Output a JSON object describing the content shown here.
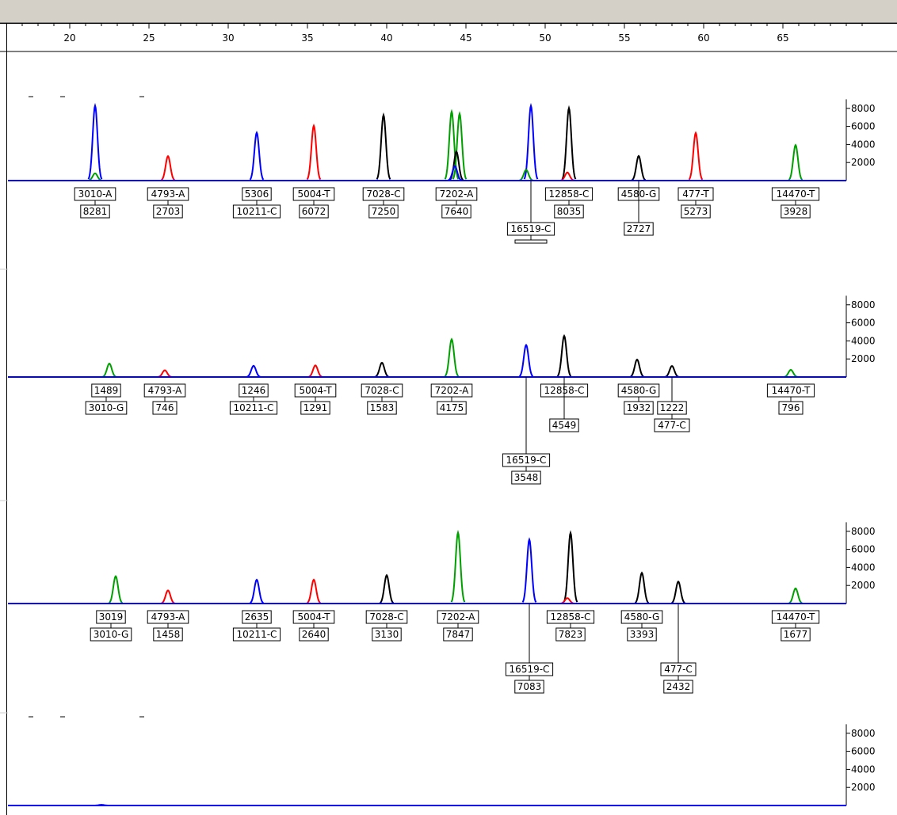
{
  "chart_data": {
    "type": "line",
    "x_axis": {
      "range": [
        16,
        70
      ],
      "major_ticks": [
        20,
        25,
        30,
        35,
        40,
        45,
        50,
        55,
        60,
        65
      ]
    },
    "y_axis": {
      "range": [
        0,
        9000
      ],
      "ticks": [
        2000,
        4000,
        6000,
        8000
      ]
    },
    "colors": {
      "blue": "#0000ff",
      "green": "#00a000",
      "red": "#ff0000",
      "black": "#000000"
    },
    "panels": [
      {
        "peaks": [
          {
            "x": 21.6,
            "height": 8281,
            "color": "blue"
          },
          {
            "x": 21.6,
            "height": 800,
            "color": "green"
          },
          {
            "x": 26.2,
            "height": 2703,
            "color": "red"
          },
          {
            "x": 31.8,
            "height": 5306,
            "color": "blue"
          },
          {
            "x": 35.4,
            "height": 6072,
            "color": "red"
          },
          {
            "x": 39.8,
            "height": 7250,
            "color": "black"
          },
          {
            "x": 44.1,
            "height": 7640,
            "color": "green"
          },
          {
            "x": 44.6,
            "height": 7400,
            "color": "green"
          },
          {
            "x": 44.4,
            "height": 3200,
            "color": "black"
          },
          {
            "x": 44.3,
            "height": 1600,
            "color": "blue"
          },
          {
            "x": 49.1,
            "height": 8281,
            "color": "blue"
          },
          {
            "x": 48.8,
            "height": 1200,
            "color": "green"
          },
          {
            "x": 51.5,
            "height": 8035,
            "color": "black"
          },
          {
            "x": 51.4,
            "height": 900,
            "color": "red"
          },
          {
            "x": 55.9,
            "height": 2727,
            "color": "black"
          },
          {
            "x": 59.5,
            "height": 5273,
            "color": "red"
          },
          {
            "x": 65.8,
            "height": 3928,
            "color": "green"
          }
        ],
        "labels": [
          {
            "x": 21.6,
            "row": 1,
            "lines": [
              "3010-A",
              "8281"
            ]
          },
          {
            "x": 26.2,
            "row": 1,
            "lines": [
              "4793-A",
              "2703"
            ]
          },
          {
            "x": 31.8,
            "row": 1,
            "lines": [
              "5306",
              "10211-C"
            ]
          },
          {
            "x": 35.4,
            "row": 1,
            "lines": [
              "5004-T",
              "6072"
            ]
          },
          {
            "x": 39.8,
            "row": 1,
            "lines": [
              "7028-C",
              "7250"
            ]
          },
          {
            "x": 44.4,
            "row": 1,
            "lines": [
              "7202-A",
              "7640"
            ]
          },
          {
            "x": 51.5,
            "row": 1,
            "lines": [
              "12858-C",
              "8035"
            ]
          },
          {
            "x": 55.9,
            "row": 1,
            "lines": [
              "4580-G"
            ]
          },
          {
            "x": 55.9,
            "row": 3,
            "lines": [
              "2727"
            ]
          },
          {
            "x": 59.5,
            "row": 1,
            "lines": [
              "477-T",
              "5273"
            ]
          },
          {
            "x": 65.8,
            "row": 1,
            "lines": [
              "14470-T",
              "3928"
            ]
          },
          {
            "x": 49.1,
            "row": 3,
            "lines": [
              "16519-C"
            ],
            "clipped": true
          }
        ]
      },
      {
        "peaks": [
          {
            "x": 22.5,
            "height": 1489,
            "color": "green"
          },
          {
            "x": 26.0,
            "height": 746,
            "color": "red"
          },
          {
            "x": 31.6,
            "height": 1246,
            "color": "blue"
          },
          {
            "x": 35.5,
            "height": 1291,
            "color": "red"
          },
          {
            "x": 39.7,
            "height": 1583,
            "color": "black"
          },
          {
            "x": 44.1,
            "height": 4175,
            "color": "green"
          },
          {
            "x": 48.8,
            "height": 3548,
            "color": "blue"
          },
          {
            "x": 51.2,
            "height": 4549,
            "color": "black"
          },
          {
            "x": 55.8,
            "height": 1932,
            "color": "black"
          },
          {
            "x": 58.0,
            "height": 1222,
            "color": "black"
          },
          {
            "x": 65.5,
            "height": 796,
            "color": "green"
          }
        ],
        "labels": [
          {
            "x": 22.3,
            "row": 1,
            "lines": [
              "1489",
              "3010-G"
            ]
          },
          {
            "x": 26.0,
            "row": 1,
            "lines": [
              "4793-A",
              "746"
            ]
          },
          {
            "x": 31.6,
            "row": 1,
            "lines": [
              "1246",
              "10211-C"
            ]
          },
          {
            "x": 35.5,
            "row": 1,
            "lines": [
              "5004-T",
              "1291"
            ]
          },
          {
            "x": 39.7,
            "row": 1,
            "lines": [
              "7028-C",
              "1583"
            ]
          },
          {
            "x": 44.1,
            "row": 1,
            "lines": [
              "7202-A",
              "4175"
            ]
          },
          {
            "x": 51.2,
            "row": 1,
            "lines": [
              "12858-C"
            ]
          },
          {
            "x": 51.2,
            "row": 3,
            "lines": [
              "4549"
            ]
          },
          {
            "x": 55.9,
            "row": 1,
            "lines": [
              "4580-G",
              "1932"
            ]
          },
          {
            "x": 58.0,
            "row": 2,
            "lines": [
              "1222",
              "477-C"
            ]
          },
          {
            "x": 48.8,
            "row": 5,
            "lines": [
              "16519-C",
              "3548"
            ]
          },
          {
            "x": 65.5,
            "row": 1,
            "lines": [
              "14470-T",
              "796"
            ]
          }
        ]
      },
      {
        "peaks": [
          {
            "x": 22.9,
            "height": 3019,
            "color": "green"
          },
          {
            "x": 26.2,
            "height": 1458,
            "color": "red"
          },
          {
            "x": 31.8,
            "height": 2635,
            "color": "blue"
          },
          {
            "x": 35.4,
            "height": 2640,
            "color": "red"
          },
          {
            "x": 40.0,
            "height": 3130,
            "color": "black"
          },
          {
            "x": 44.5,
            "height": 7847,
            "color": "green"
          },
          {
            "x": 49.0,
            "height": 7083,
            "color": "blue"
          },
          {
            "x": 51.6,
            "height": 7823,
            "color": "black"
          },
          {
            "x": 51.4,
            "height": 600,
            "color": "red"
          },
          {
            "x": 56.1,
            "height": 3393,
            "color": "black"
          },
          {
            "x": 58.4,
            "height": 2432,
            "color": "black"
          },
          {
            "x": 65.8,
            "height": 1677,
            "color": "green"
          }
        ],
        "labels": [
          {
            "x": 22.6,
            "row": 1,
            "lines": [
              "3019",
              "3010-G"
            ]
          },
          {
            "x": 26.2,
            "row": 1,
            "lines": [
              "4793-A",
              "1458"
            ]
          },
          {
            "x": 31.8,
            "row": 1,
            "lines": [
              "2635",
              "10211-C"
            ]
          },
          {
            "x": 35.4,
            "row": 1,
            "lines": [
              "5004-T",
              "2640"
            ]
          },
          {
            "x": 40.0,
            "row": 1,
            "lines": [
              "7028-C",
              "3130"
            ]
          },
          {
            "x": 44.5,
            "row": 1,
            "lines": [
              "7202-A",
              "7847"
            ]
          },
          {
            "x": 51.6,
            "row": 1,
            "lines": [
              "12858-C",
              "7823"
            ]
          },
          {
            "x": 56.1,
            "row": 1,
            "lines": [
              "4580-G",
              "3393"
            ]
          },
          {
            "x": 58.4,
            "row": 4,
            "lines": [
              "477-C",
              "2432"
            ]
          },
          {
            "x": 49.0,
            "row": 4,
            "lines": [
              "16519-C",
              "7083"
            ]
          },
          {
            "x": 65.8,
            "row": 1,
            "lines": [
              "14470-T",
              "1677"
            ]
          }
        ]
      },
      {
        "peaks": [
          {
            "x": 22.0,
            "height": 80,
            "color": "blue"
          }
        ],
        "labels": []
      }
    ]
  }
}
